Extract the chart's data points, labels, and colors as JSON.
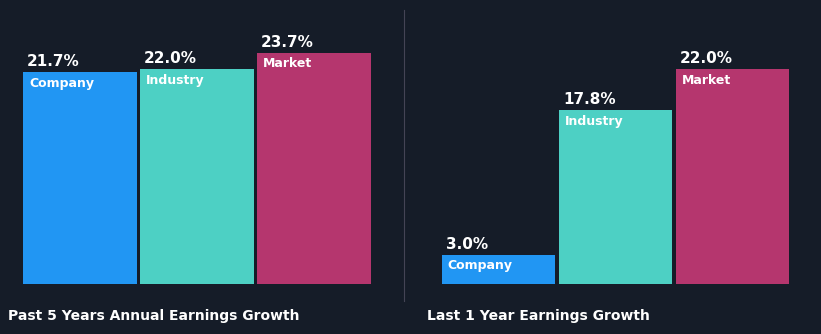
{
  "background_color": "#151c28",
  "chart1": {
    "title": "Past 5 Years Annual Earnings Growth",
    "bars": [
      {
        "label": "Company",
        "value": 21.7,
        "color": "#2196f3"
      },
      {
        "label": "Industry",
        "value": 22.0,
        "color": "#4dd0c4"
      },
      {
        "label": "Market",
        "value": 23.7,
        "color": "#b5366e"
      }
    ]
  },
  "chart2": {
    "title": "Last 1 Year Earnings Growth",
    "bars": [
      {
        "label": "Company",
        "value": 3.0,
        "color": "#2196f3"
      },
      {
        "label": "Industry",
        "value": 17.8,
        "color": "#4dd0c4"
      },
      {
        "label": "Market",
        "value": 22.0,
        "color": "#b5366e"
      }
    ]
  },
  "ylim": [
    0,
    26
  ],
  "label_color": "#ffffff",
  "title_color": "#ffffff",
  "value_fontsize": 11,
  "label_fontsize": 9,
  "title_fontsize": 10,
  "bar_width": 0.3,
  "bar_gap": 0.01
}
